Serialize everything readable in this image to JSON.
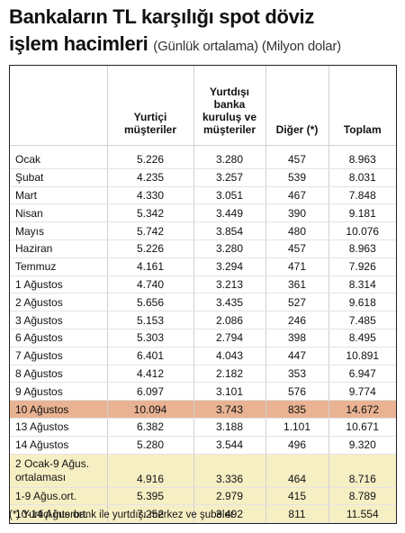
{
  "title": {
    "line1": "Bankaların TL karşılığı spot döviz",
    "line2_main": "işlem hacimleri",
    "line2_sub": "(Günlük ortalama) (Milyon dolar)"
  },
  "headers": {
    "col0": "",
    "col1": [
      "Yurtiçi",
      "müşteriler"
    ],
    "col2": [
      "Yurtdışı",
      "banka",
      "kuruluş ve",
      "müşteriler"
    ],
    "col3": [
      "Diğer (*)"
    ],
    "col4": [
      "Toplam"
    ]
  },
  "rows": [
    {
      "label": "Ocak",
      "yurtici": "5.226",
      "yurtdisi": "3.280",
      "diger": "457",
      "toplam": "8.963"
    },
    {
      "label": "Şubat",
      "yurtici": "4.235",
      "yurtdisi": "3.257",
      "diger": "539",
      "toplam": "8.031"
    },
    {
      "label": "Mart",
      "yurtici": "4.330",
      "yurtdisi": "3.051",
      "diger": "467",
      "toplam": "7.848"
    },
    {
      "label": "Nisan",
      "yurtici": "5.342",
      "yurtdisi": "3.449",
      "diger": "390",
      "toplam": "9.181"
    },
    {
      "label": "Mayıs",
      "yurtici": "5.742",
      "yurtdisi": "3.854",
      "diger": "480",
      "toplam": "10.076"
    },
    {
      "label": "Haziran",
      "yurtici": "5.226",
      "yurtdisi": "3.280",
      "diger": "457",
      "toplam": "8.963"
    },
    {
      "label": "Temmuz",
      "yurtici": "4.161",
      "yurtdisi": "3.294",
      "diger": "471",
      "toplam": "7.926"
    },
    {
      "label": "1 Ağustos",
      "yurtici": "4.740",
      "yurtdisi": "3.213",
      "diger": "361",
      "toplam": "8.314"
    },
    {
      "label": "2 Ağustos",
      "yurtici": "5.656",
      "yurtdisi": "3.435",
      "diger": "527",
      "toplam": "9.618"
    },
    {
      "label": "3 Ağustos",
      "yurtici": "5.153",
      "yurtdisi": "2.086",
      "diger": "246",
      "toplam": "7.485"
    },
    {
      "label": "6 Ağustos",
      "yurtici": "5.303",
      "yurtdisi": "2.794",
      "diger": "398",
      "toplam": "8.495"
    },
    {
      "label": "7 Ağustos",
      "yurtici": "6.401",
      "yurtdisi": "4.043",
      "diger": "447",
      "toplam": "10.891"
    },
    {
      "label": "8 Ağustos",
      "yurtici": "4.412",
      "yurtdisi": "2.182",
      "diger": "353",
      "toplam": "6.947"
    },
    {
      "label": "9 Ağustos",
      "yurtici": "6.097",
      "yurtdisi": "3.101",
      "diger": "576",
      "toplam": "9.774"
    },
    {
      "label": "10 Ağustos",
      "yurtici": "10.094",
      "yurtdisi": "3.743",
      "diger": "835",
      "toplam": "14.672"
    },
    {
      "label": "13 Ağustos",
      "yurtici": "6.382",
      "yurtdisi": "3.188",
      "diger": "1.101",
      "toplam": "10.671"
    },
    {
      "label": "14 Ağustos",
      "yurtici": "5.280",
      "yurtdisi": "3.544",
      "diger": "496",
      "toplam": "9.320"
    }
  ],
  "averages": [
    {
      "label": [
        "2 Ocak-9 Ağus.",
        "ortalaması"
      ],
      "yurtici": "4.916",
      "yurtdisi": "3.336",
      "diger": "464",
      "toplam": "8.716"
    },
    {
      "label": [
        "1-9 Ağus.ort."
      ],
      "yurtici": "5.395",
      "yurtdisi": "2.979",
      "diger": "415",
      "toplam": "8.789"
    },
    {
      "label": [
        "10-14 Ağus.ort."
      ],
      "yurtici": "7.252",
      "yurtdisi": "3.492",
      "diger": "811",
      "toplam": "11.554"
    }
  ],
  "highlight_row_label": "10 Ağustos",
  "colors": {
    "highlight": "#e9b393",
    "averages": "#f7efc4"
  },
  "footnote": "(*) Yurtiçi interbank ile yurtdışı merkez ve şubeler"
}
